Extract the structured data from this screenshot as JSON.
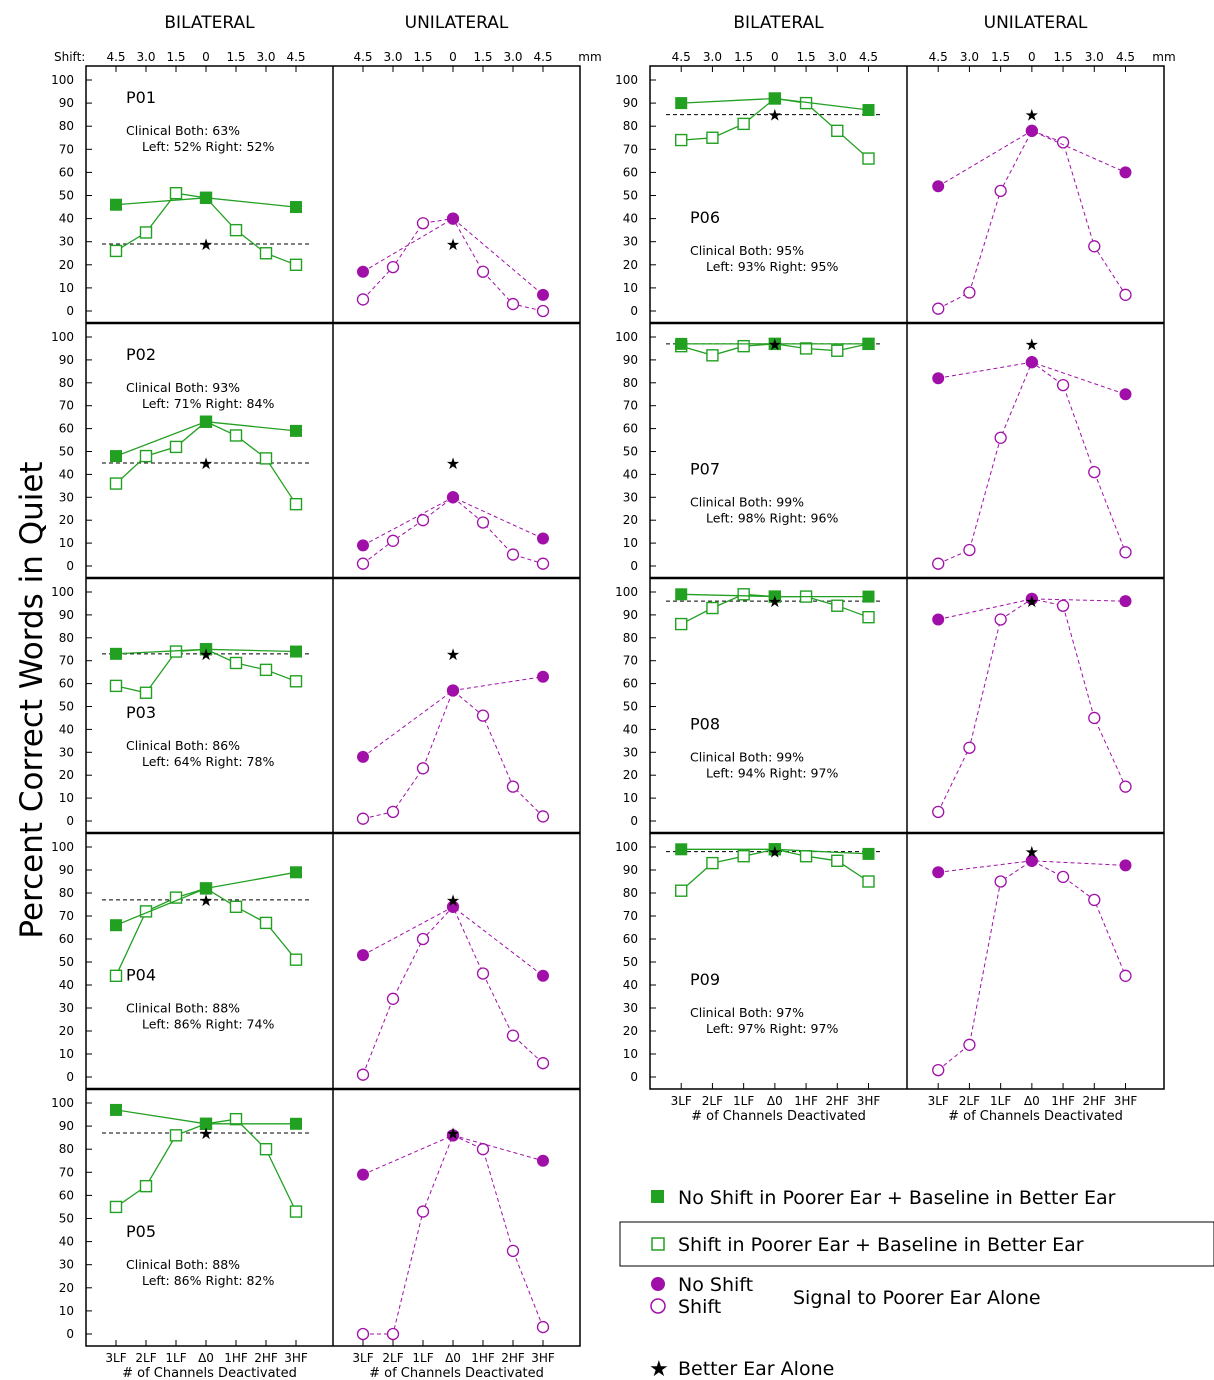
{
  "figure": {
    "ylabel": "Percent Correct Words in Quiet",
    "xlabel": "# of Channels Deactivated",
    "shift_label": "Shift:",
    "mm_label": "mm",
    "col_titles": [
      "BILATERAL",
      "UNILATERAL",
      "BILATERAL",
      "UNILATERAL"
    ],
    "shift_ticks": [
      "4.5",
      "3.0",
      "1.5",
      "0",
      "1.5",
      "3.0",
      "4.5"
    ],
    "channel_ticks": [
      "3LF",
      "2LF",
      "1LF",
      "Δ0",
      "1HF",
      "2HF",
      "3HF"
    ],
    "yticks": [
      "0",
      "10",
      "20",
      "30",
      "40",
      "50",
      "60",
      "70",
      "80",
      "90",
      "100"
    ],
    "colors": {
      "green": "#22a022",
      "magenta": "#a010a8",
      "black": "#000000"
    }
  },
  "legend": {
    "no_shift_poorer_baseline_better": "No Shift in Poorer Ear + Baseline in Better Ear",
    "shift_poorer_baseline_better": "Shift in Poorer Ear + Baseline in Better Ear",
    "no_shift": "No Shift",
    "shift": "Shift",
    "signal_poorer_alone": "Signal to Poorer Ear Alone",
    "better_ear_alone": "Better Ear Alone"
  },
  "chart_data": {
    "type": "line",
    "ylim": [
      0,
      100
    ],
    "x": [
      "3LF",
      "2LF",
      "1LF",
      "Δ0",
      "1HF",
      "2HF",
      "3HF"
    ],
    "panels": [
      {
        "id": "P01",
        "clinical_both": "Clinical Both:  63%",
        "left_right": "Left: 52% Right: 52%",
        "bilateral_noshift": [
          [
            0,
            46
          ],
          [
            3,
            49
          ],
          [
            6,
            45
          ]
        ],
        "bilateral_shift": [
          26,
          34,
          51,
          49,
          35,
          25,
          20
        ],
        "better_ear": 29,
        "unilateral_noshift": [
          [
            0,
            17
          ],
          [
            3,
            40
          ],
          [
            6,
            7
          ]
        ],
        "unilateral_shift": [
          5,
          19,
          38,
          40,
          17,
          3,
          0
        ]
      },
      {
        "id": "P02",
        "clinical_both": "Clinical Both: 93%",
        "left_right": "Left: 71% Right: 84%",
        "bilateral_noshift": [
          [
            0,
            48
          ],
          [
            3,
            63
          ],
          [
            6,
            59
          ]
        ],
        "bilateral_shift": [
          36,
          48,
          52,
          63,
          57,
          47,
          27
        ],
        "better_ear": 45,
        "unilateral_noshift": [
          [
            0,
            9
          ],
          [
            3,
            30
          ],
          [
            6,
            12
          ]
        ],
        "unilateral_shift": [
          1,
          11,
          20,
          30,
          19,
          5,
          1
        ]
      },
      {
        "id": "P03",
        "clinical_both": "Clinical Both: 86%",
        "left_right": "Left: 64% Right: 78%",
        "bilateral_noshift": [
          [
            0,
            73
          ],
          [
            3,
            75
          ],
          [
            6,
            74
          ]
        ],
        "bilateral_shift": [
          59,
          56,
          74,
          75,
          69,
          66,
          61
        ],
        "better_ear": 73,
        "unilateral_noshift": [
          [
            0,
            28
          ],
          [
            3,
            57
          ],
          [
            6,
            63
          ]
        ],
        "unilateral_shift": [
          1,
          4,
          23,
          57,
          46,
          15,
          2
        ]
      },
      {
        "id": "P04",
        "clinical_both": "Clinical Both: 88%",
        "left_right": "Left: 86% Right: 74%",
        "bilateral_noshift": [
          [
            0,
            66
          ],
          [
            3,
            82
          ],
          [
            6,
            89
          ]
        ],
        "bilateral_shift": [
          44,
          72,
          78,
          82,
          74,
          67,
          51
        ],
        "better_ear": 77,
        "unilateral_noshift": [
          [
            0,
            53
          ],
          [
            3,
            74
          ],
          [
            6,
            44
          ]
        ],
        "unilateral_shift": [
          1,
          34,
          60,
          74,
          45,
          18,
          6
        ]
      },
      {
        "id": "P05",
        "clinical_both": "Clinical Both: 88%",
        "left_right": "Left: 86% Right: 82%",
        "bilateral_noshift": [
          [
            0,
            97
          ],
          [
            3,
            91
          ],
          [
            6,
            91
          ]
        ],
        "bilateral_shift": [
          55,
          64,
          86,
          91,
          93,
          80,
          53
        ],
        "better_ear": 87,
        "unilateral_noshift": [
          [
            0,
            69
          ],
          [
            3,
            86
          ],
          [
            6,
            75
          ]
        ],
        "unilateral_shift": [
          0,
          0,
          53,
          86,
          80,
          36,
          3
        ]
      },
      {
        "id": "P06",
        "clinical_both": "Clinical Both: 95%",
        "left_right": "Left: 93% Right: 95%",
        "bilateral_noshift": [
          [
            0,
            90
          ],
          [
            3,
            92
          ],
          [
            6,
            87
          ]
        ],
        "bilateral_shift": [
          74,
          75,
          81,
          92,
          90,
          78,
          66
        ],
        "better_ear": 85,
        "unilateral_noshift": [
          [
            0,
            54
          ],
          [
            3,
            78
          ],
          [
            6,
            60
          ]
        ],
        "unilateral_shift": [
          1,
          8,
          52,
          78,
          73,
          28,
          7
        ]
      },
      {
        "id": "P07",
        "clinical_both": "Clinical Both: 99%",
        "left_right": "Left: 98% Right: 96%",
        "bilateral_noshift": [
          [
            0,
            97
          ],
          [
            3,
            97
          ],
          [
            6,
            97
          ]
        ],
        "bilateral_shift": [
          96,
          92,
          96,
          97,
          95,
          94,
          97
        ],
        "better_ear": 97,
        "unilateral_noshift": [
          [
            0,
            82
          ],
          [
            3,
            89
          ],
          [
            6,
            75
          ]
        ],
        "unilateral_shift": [
          1,
          7,
          56,
          89,
          79,
          41,
          6
        ]
      },
      {
        "id": "P08",
        "clinical_both": "Clinical Both: 99%",
        "left_right": "Left: 94% Right: 97%",
        "bilateral_noshift": [
          [
            0,
            99
          ],
          [
            3,
            98
          ],
          [
            6,
            98
          ]
        ],
        "bilateral_shift": [
          86,
          93,
          99,
          98,
          98,
          94,
          89
        ],
        "better_ear": 96,
        "unilateral_noshift": [
          [
            0,
            88
          ],
          [
            3,
            97
          ],
          [
            6,
            96
          ]
        ],
        "unilateral_shift": [
          4,
          32,
          88,
          97,
          94,
          45,
          15
        ]
      },
      {
        "id": "P09",
        "clinical_both": "Clinical Both:   97%",
        "left_right": "Left: 97% Right: 97%",
        "bilateral_noshift": [
          [
            0,
            99
          ],
          [
            3,
            99
          ],
          [
            6,
            97
          ]
        ],
        "bilateral_shift": [
          81,
          93,
          96,
          99,
          96,
          94,
          85
        ],
        "better_ear": 98,
        "unilateral_noshift": [
          [
            0,
            89
          ],
          [
            3,
            94
          ],
          [
            6,
            92
          ]
        ],
        "unilateral_shift": [
          3,
          14,
          85,
          94,
          87,
          77,
          44
        ]
      }
    ]
  }
}
